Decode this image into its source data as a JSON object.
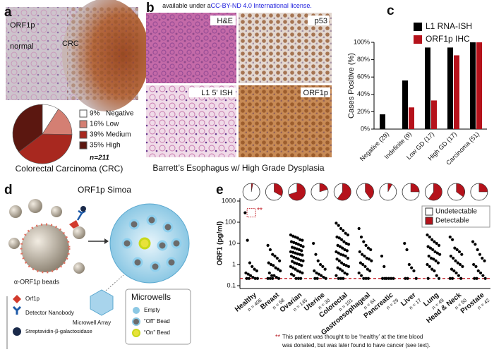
{
  "license": {
    "prefix": "available under a",
    "link": "CC-BY-ND 4.0 International license."
  },
  "panel_a": {
    "label": "a",
    "image_labels": [
      "ORF1p",
      "normal",
      "CRC"
    ]
  },
  "panel_b": {
    "label": "b",
    "image_labels": [
      "H&E",
      "p53",
      "L1 5' ISH",
      "ORF1p"
    ],
    "caption": "Barrett’s Esophagus w/ High Grade Dysplasia"
  },
  "panel_c": {
    "label": "c"
  },
  "panel_d": {
    "label": "d",
    "title": "ORF1p Simoa",
    "beads_label": "α-ORF1p beads",
    "key": [
      "Orf1p",
      "Detector Nanobody",
      "Streptavidin-β-galactosidase"
    ],
    "array_label": "Microwell Array",
    "microwells": {
      "title": "Microwells",
      "items": [
        "Empty",
        "“Off” Bead",
        "“On” Bead"
      ]
    }
  },
  "panel_e": {
    "label": "e",
    "footnote_marker": "**",
    "footnote": [
      "This patient was thought to be ‘healthy’ at the time blood",
      "was donated, but was later found to have cancer (see text)."
    ]
  },
  "chart_data": [
    {
      "type": "pie",
      "title": "Colorectal Carcinoma (CRC)",
      "note": "n=211",
      "categories": [
        "Negative",
        "Low",
        "Medium",
        "High"
      ],
      "values": [
        9,
        16,
        39,
        35
      ],
      "value_labels": [
        "9%",
        "16%",
        "39%",
        "35%"
      ],
      "colors": [
        "#ffffff",
        "#d47f73",
        "#a8281f",
        "#5b1710"
      ]
    },
    {
      "type": "bar",
      "ylabel": "Cases Positive (%)",
      "categories": [
        "Negative (29)",
        "Indefinite (9)",
        "Low GD (17)",
        "High GD (17)",
        "Carcinoma (51)"
      ],
      "series": [
        {
          "name": "L1 RNA-ISH",
          "color": "#000000",
          "values": [
            17,
            56,
            94,
            94,
            100
          ]
        },
        {
          "name": "ORF1p IHC",
          "color": "#b5121b",
          "values": [
            0,
            25,
            33,
            85,
            100
          ]
        }
      ],
      "ylim": [
        0,
        100
      ],
      "yticks": [
        {
          "value": 0,
          "label": "0%"
        },
        {
          "value": 20,
          "label": "20%"
        },
        {
          "value": 40,
          "label": "40%"
        },
        {
          "value": 60,
          "label": "60%"
        },
        {
          "value": 80,
          "label": "80%"
        },
        {
          "value": 100,
          "label": "100%"
        }
      ]
    },
    {
      "type": "strip",
      "ylabel": "ORF1 (pg/ml)",
      "log_scale": true,
      "ylim": [
        0.1,
        1000
      ],
      "yticks": [
        0.1,
        1,
        10,
        100,
        1000
      ],
      "threshold": 0.22,
      "annotation": "**",
      "categories": [
        "Healthy",
        "Breast",
        "Ovarian",
        "Uterine",
        "Colorectal",
        "Gastroesophageal",
        "Pancreatic",
        "Liver",
        "Lung",
        "Head & Neck",
        "Prostate"
      ],
      "n_labels": [
        "n = 406",
        "n = 58",
        "n = 145",
        "n = 30",
        "n = 101",
        "n = 64",
        "n = 29",
        "n = 17",
        "n = 49",
        "n = 50",
        "n = 42"
      ],
      "detectable_percent": [
        3,
        33,
        70,
        20,
        60,
        40,
        8,
        25,
        60,
        35,
        25
      ],
      "legend": [
        {
          "name": "Undetectable",
          "color": "#ffffff"
        },
        {
          "name": "Detectable",
          "color": "#b5121b"
        }
      ],
      "point_color": "#000000",
      "values": [
        [
          280,
          14,
          1.2,
          0.8,
          0.6,
          0.5,
          0.4,
          0.35,
          0.3,
          0.25,
          0.22,
          0.22,
          0.22,
          0.22
        ],
        [
          8,
          5,
          3,
          2.5,
          2,
          1.5,
          1.2,
          1,
          0.9,
          0.7,
          0.6,
          0.5,
          0.4,
          0.3,
          0.3,
          0.25,
          0.22,
          0.22,
          0.22,
          0.22
        ],
        [
          25,
          22,
          20,
          18,
          15,
          14,
          12,
          11,
          10,
          9,
          8,
          7,
          6.5,
          6,
          5.5,
          5,
          4.5,
          4,
          3.8,
          3.5,
          3.2,
          3,
          2.8,
          2.5,
          2.2,
          2,
          1.8,
          1.6,
          1.5,
          1.4,
          1.2,
          1.1,
          1,
          0.9,
          0.8,
          0.7,
          0.6,
          0.5,
          0.45,
          0.4,
          0.35,
          0.3,
          0.22,
          0.22,
          0.22
        ],
        [
          10,
          3,
          1.5,
          1,
          0.8,
          0.6,
          0.5,
          0.4,
          0.35,
          0.3,
          0.25,
          0.22,
          0.22,
          0.22
        ],
        [
          90,
          70,
          50,
          40,
          30,
          25,
          20,
          18,
          15,
          12,
          10,
          9,
          8,
          7,
          6,
          5,
          4.5,
          4,
          3.5,
          3,
          2.8,
          2.5,
          2,
          1.8,
          1.5,
          1.2,
          1,
          0.9,
          0.8,
          0.7,
          0.6,
          0.5,
          0.4,
          0.35,
          0.3,
          0.22,
          0.22,
          0.22
        ],
        [
          50,
          20,
          12,
          8,
          6,
          5,
          4,
          3,
          2.5,
          2,
          1.8,
          1.5,
          1.2,
          1,
          0.8,
          0.6,
          0.5,
          0.4,
          0.3,
          0.22,
          0.22,
          0.22
        ],
        [
          2.5,
          0.8,
          0.22,
          0.22,
          0.22,
          0.22,
          0.22,
          0.22
        ],
        [
          10,
          5,
          1,
          0.7,
          0.5,
          0.22,
          0.22,
          0.22
        ],
        [
          25,
          20,
          15,
          12,
          10,
          8,
          7,
          6,
          5,
          4,
          3.5,
          3,
          2.5,
          2,
          1.8,
          1.5,
          1.2,
          1,
          0.8,
          0.6,
          0.5,
          0.3,
          0.22,
          0.22
        ],
        [
          20,
          15,
          6,
          5,
          4,
          3,
          2.5,
          2,
          1.5,
          1.2,
          1,
          0.8,
          0.6,
          0.5,
          0.4,
          0.3,
          0.22,
          0.22,
          0.22
        ],
        [
          12,
          9,
          5,
          3,
          2,
          1.5,
          1,
          0.8,
          0.5,
          0.4,
          0.3,
          0.22,
          0.22,
          0.22
        ]
      ]
    }
  ]
}
